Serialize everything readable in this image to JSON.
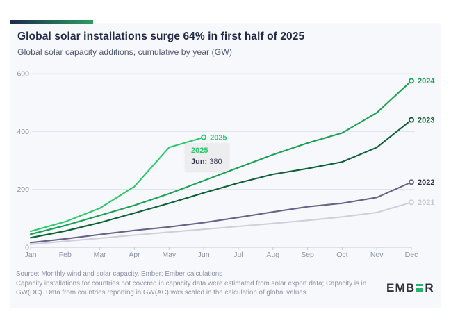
{
  "header": {
    "accent_gradient_from": "#1b2a4e",
    "accent_gradient_to": "#2e9d62"
  },
  "chart_data": {
    "type": "line",
    "title": "Global solar installations surge 64% in first half of 2025",
    "subtitle": "Global solar capacity additions, cumulative by year (GW)",
    "unit": "GW",
    "x": [
      "Jan",
      "Feb",
      "Mar",
      "Apr",
      "May",
      "Jun",
      "Jul",
      "Aug",
      "Sep",
      "Oct",
      "Nov",
      "Dec"
    ],
    "yticks": [
      0,
      200,
      400,
      600
    ],
    "ylim": [
      0,
      600
    ],
    "grid": "horizontal",
    "legend_position": "end-of-line labels",
    "series": [
      {
        "name": "2021",
        "color": "#cdd0da",
        "label_color": "#c6c9d5",
        "values": [
          10,
          21,
          31,
          42,
          52,
          62,
          72,
          82,
          93,
          105,
          120,
          155
        ]
      },
      {
        "name": "2022",
        "color": "#67648a",
        "label_color": "#2f3049",
        "values": [
          16,
          29,
          44,
          58,
          70,
          85,
          103,
          122,
          140,
          152,
          172,
          225
        ]
      },
      {
        "name": "2023",
        "color": "#0e6136",
        "label_color": "#0e6136",
        "values": [
          33,
          56,
          85,
          118,
          152,
          188,
          222,
          252,
          272,
          295,
          345,
          440
        ]
      },
      {
        "name": "2024",
        "color": "#1aa053",
        "label_color": "#1aa053",
        "values": [
          45,
          75,
          110,
          145,
          185,
          230,
          275,
          320,
          360,
          395,
          465,
          575
        ]
      },
      {
        "name": "2025",
        "color": "#2bc86d",
        "label_color": "#2bc86d",
        "values": [
          55,
          88,
          135,
          210,
          345,
          380
        ]
      }
    ]
  },
  "tooltip": {
    "series_label": "2025",
    "point_label": "Jun:",
    "point_value": "380"
  },
  "footer": {
    "source": "Source: Monthly wind and solar capacity, Ember; Ember calculations",
    "note": "Capacity installations for countries not covered in capacity data were estimated from solar export data; Capacity is in GW(DC). Data from countries reporting in GW(AC) was scaled in the calculation of global values."
  },
  "logo": {
    "prefix": "EMB",
    "suffix": "R",
    "bar_color": "#25b568"
  }
}
